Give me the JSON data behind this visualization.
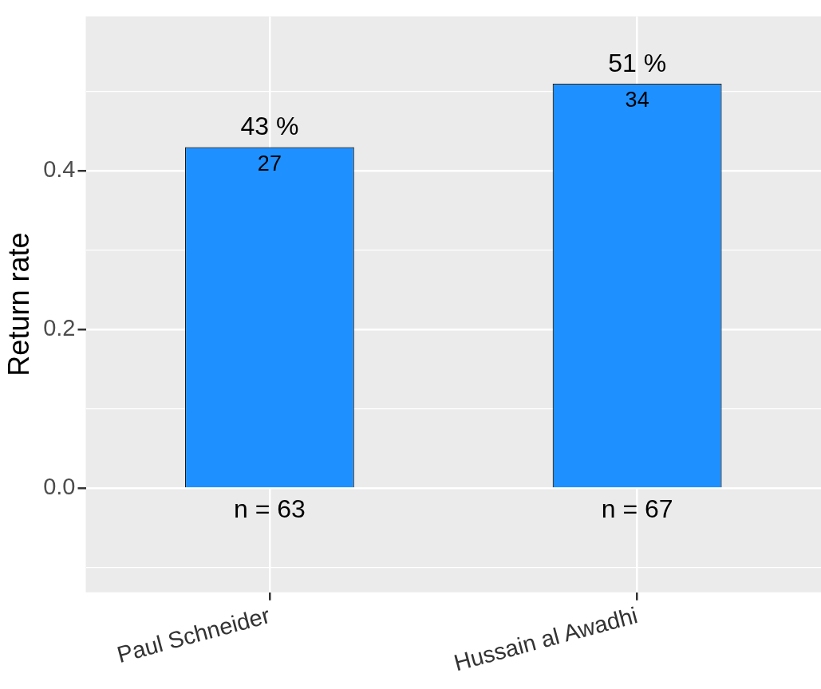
{
  "chart_data": {
    "type": "bar",
    "ylabel": "Return rate",
    "categories": [
      "Paul Schneider",
      "Hussain al Awadhi"
    ],
    "values": [
      0.43,
      0.51
    ],
    "color": "#1e90ff",
    "value_labels": [
      "43 %",
      "51 %"
    ],
    "annotations": [
      {
        "text": "27",
        "x": "Paul Schneider",
        "y": 0.43
      },
      {
        "text": "34",
        "x": "Hussain al Awadhi",
        "y": 0.51
      },
      {
        "text": "n = 63",
        "x": "Paul Schneider",
        "y": 0
      },
      {
        "text": "n = 67",
        "x": "Hussain al Awadhi",
        "y": 0
      }
    ],
    "ylim": [
      -0.131,
      0.595
    ],
    "yticks": [
      {
        "value": -0.1,
        "label": null
      },
      {
        "value": 0,
        "label": "0.0"
      },
      {
        "value": 0.1,
        "label": null
      },
      {
        "value": 0.2,
        "label": "0.2"
      },
      {
        "value": 0.3,
        "label": null
      },
      {
        "value": 0.4,
        "label": "0.4"
      },
      {
        "value": 0.5,
        "label": null
      }
    ],
    "grid": true,
    "legend": false
  }
}
